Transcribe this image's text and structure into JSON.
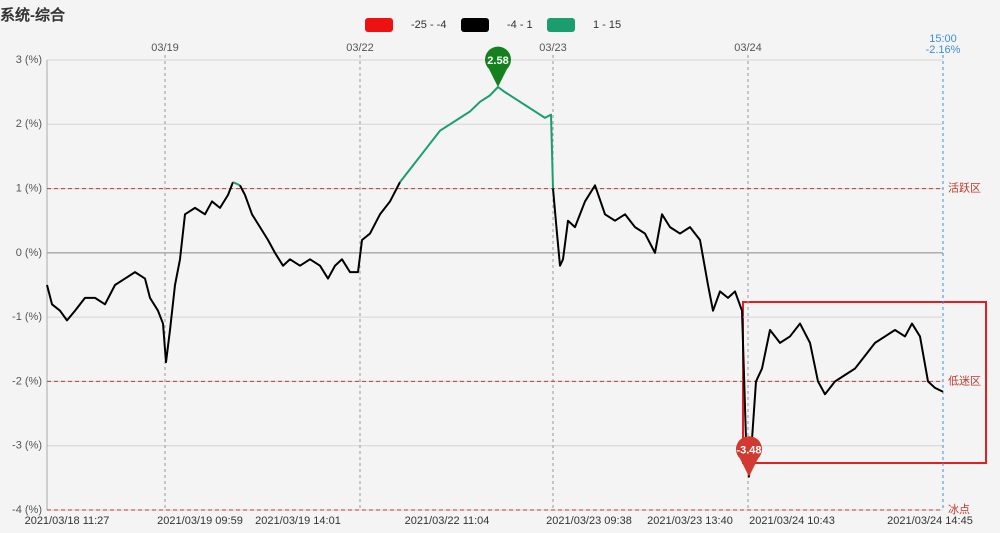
{
  "chart_data": {
    "type": "line",
    "title": "系统-综合",
    "color_bands": [
      {
        "name": "-25 - -4",
        "min": -25,
        "max": -4,
        "color": "#ee1111"
      },
      {
        "name": "-4 - 1",
        "min": -4,
        "max": 1,
        "color": "#000000"
      },
      {
        "name": "1 - 15",
        "min": 1,
        "max": 15,
        "color": "#1b9e6e"
      }
    ],
    "x": [
      0,
      5,
      13,
      20,
      28,
      38,
      48,
      58,
      68,
      78,
      88,
      98,
      103,
      111,
      116,
      119,
      123,
      128,
      133,
      138,
      148,
      158,
      165,
      173,
      181,
      186,
      193,
      198,
      205,
      213,
      221,
      228,
      236,
      243,
      253,
      263,
      273,
      281,
      288,
      295,
      303,
      311,
      315,
      323,
      333,
      343,
      353,
      363,
      373,
      383,
      393,
      403,
      413,
      423,
      433,
      443,
      451,
      458,
      468,
      478,
      488,
      498,
      504,
      506,
      510,
      513,
      516,
      521,
      528,
      538,
      548,
      558,
      568,
      578,
      588,
      598,
      608,
      615,
      623,
      633,
      643,
      653,
      661,
      666,
      673,
      681,
      688,
      695,
      699,
      702,
      705,
      709,
      715,
      723,
      733,
      743,
      753,
      763,
      771,
      778,
      788,
      798,
      808,
      818,
      828,
      838,
      848,
      858,
      865,
      873,
      881,
      888,
      896
    ],
    "values": [
      -0.5,
      -0.8,
      -0.9,
      -1.05,
      -0.9,
      -0.7,
      -0.7,
      -0.8,
      -0.5,
      -0.4,
      -0.3,
      -0.4,
      -0.7,
      -0.9,
      -1.1,
      -1.7,
      -1.2,
      -0.5,
      -0.1,
      0.6,
      0.7,
      0.6,
      0.8,
      0.7,
      0.9,
      1.1,
      1.05,
      0.9,
      0.6,
      0.4,
      0.2,
      0.0,
      -0.2,
      -0.1,
      -0.2,
      -0.1,
      -0.2,
      -0.4,
      -0.2,
      -0.1,
      -0.3,
      -0.3,
      0.2,
      0.3,
      0.6,
      0.8,
      1.1,
      1.3,
      1.5,
      1.7,
      1.9,
      2.0,
      2.1,
      2.2,
      2.35,
      2.45,
      2.58,
      2.5,
      2.4,
      2.3,
      2.2,
      2.1,
      2.15,
      1.0,
      0.3,
      -0.2,
      -0.1,
      0.5,
      0.4,
      0.8,
      1.05,
      0.6,
      0.5,
      0.6,
      0.4,
      0.3,
      0.0,
      0.6,
      0.4,
      0.3,
      0.4,
      0.2,
      -0.5,
      -0.9,
      -0.6,
      -0.7,
      -0.6,
      -0.9,
      -2.9,
      -3.48,
      -2.9,
      -2.0,
      -1.8,
      -1.2,
      -1.4,
      -1.3,
      -1.1,
      -1.4,
      -2.0,
      -2.2,
      -2.0,
      -1.9,
      -1.8,
      -1.6,
      -1.4,
      -1.3,
      -1.2,
      -1.3,
      -1.1,
      -1.3,
      -2.0,
      -2.1,
      -2.16
    ],
    "xlim": [
      0,
      896
    ],
    "ylim": [
      -4,
      3
    ],
    "yticks": [
      {
        "value": 3,
        "label": "3 (%)"
      },
      {
        "value": 2,
        "label": "2 (%)"
      },
      {
        "value": 1,
        "label": "1 (%)"
      },
      {
        "value": 0,
        "label": "0 (%)"
      },
      {
        "value": -1,
        "label": "-1 (%)"
      },
      {
        "value": -2,
        "label": "-2 (%)"
      },
      {
        "value": -3,
        "label": "-3 (%)"
      },
      {
        "value": -4,
        "label": "-4 (%)"
      }
    ],
    "xticks": [
      {
        "value": 20,
        "label": "2021/03/18 11:27"
      },
      {
        "value": 153,
        "label": "2021/03/19 09:59"
      },
      {
        "value": 251,
        "label": "2021/03/19 14:01"
      },
      {
        "value": 400,
        "label": "2021/03/22 11:04"
      },
      {
        "value": 542,
        "label": "2021/03/23 09:38"
      },
      {
        "value": 643,
        "label": "2021/03/23 13:40"
      },
      {
        "value": 745,
        "label": "2021/03/24 10:43"
      },
      {
        "value": 883,
        "label": "2021/03/24 14:45"
      }
    ],
    "day_ticks": [
      {
        "value": 118,
        "label": "03/19"
      },
      {
        "value": 313,
        "label": "03/22"
      },
      {
        "value": 506,
        "label": "03/23"
      },
      {
        "value": 701,
        "label": "03/24"
      }
    ],
    "now_tick": {
      "value": 896,
      "label": "15:00"
    },
    "end_value_label": "-2.16%",
    "now_color": "#3b8fe0",
    "reference_lines": [
      {
        "value": 1,
        "label": "活跃区"
      },
      {
        "value": -2,
        "label": "低迷区"
      },
      {
        "value": -4,
        "label": "冰点"
      }
    ],
    "reference_color": "#c0392b",
    "pins": [
      {
        "x": 451,
        "value": 2.58,
        "color": "#14801e"
      },
      {
        "x": 702,
        "value": -3.48,
        "color": "#d03a30"
      }
    ],
    "grid": true
  }
}
